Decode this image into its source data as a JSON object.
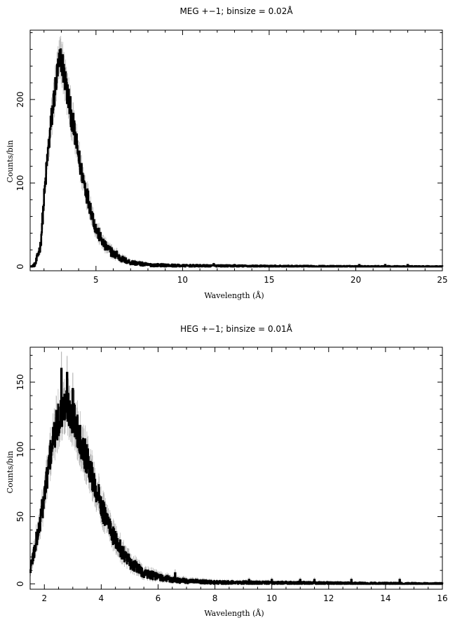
{
  "chart_data": [
    {
      "type": "line",
      "title": "MEG +−1; binsize = 0.02Å",
      "xlabel": "Wavelength (Å)",
      "ylabel": "Counts/bin",
      "xlim": [
        1.2,
        25
      ],
      "ylim": [
        -5,
        283
      ],
      "xticks": [
        5,
        10,
        15,
        20,
        25
      ],
      "xtick_labels": [
        "5",
        "10",
        "15",
        "20",
        "25"
      ],
      "yticks": [
        0,
        100,
        200
      ],
      "ytick_labels": [
        "0",
        "100",
        "200"
      ],
      "binsize": 0.02,
      "error_bars": true,
      "profile_points": [
        [
          1.3,
          0
        ],
        [
          1.5,
          3
        ],
        [
          1.8,
          25
        ],
        [
          2.0,
          80
        ],
        [
          2.2,
          130
        ],
        [
          2.4,
          170
        ],
        [
          2.6,
          205
        ],
        [
          2.8,
          235
        ],
        [
          3.0,
          250
        ],
        [
          3.2,
          225
        ],
        [
          3.5,
          190
        ],
        [
          3.8,
          155
        ],
        [
          4.1,
          120
        ],
        [
          4.5,
          85
        ],
        [
          5.0,
          45
        ],
        [
          5.5,
          25
        ],
        [
          6.0,
          15
        ],
        [
          6.5,
          9
        ],
        [
          7.0,
          5
        ],
        [
          8.0,
          2
        ],
        [
          10.0,
          1
        ],
        [
          15.0,
          0.5
        ],
        [
          25.0,
          0
        ]
      ],
      "spikes": [
        [
          5.9,
          22
        ],
        [
          6.2,
          18
        ],
        [
          11.8,
          3
        ],
        [
          13.0,
          2
        ],
        [
          20.2,
          2
        ],
        [
          21.7,
          2
        ],
        [
          23.0,
          2
        ]
      ]
    },
    {
      "type": "line",
      "title": "HEG +−1; binsize = 0.01Å",
      "xlabel": "Wavelength (Å)",
      "ylabel": "Counts/bin",
      "xlim": [
        1.5,
        16
      ],
      "ylim": [
        -4,
        176
      ],
      "xticks": [
        2,
        4,
        6,
        8,
        10,
        12,
        14,
        16
      ],
      "xtick_labels": [
        "2",
        "4",
        "6",
        "8",
        "10",
        "12",
        "14",
        "16"
      ],
      "yticks": [
        0,
        50,
        100,
        150
      ],
      "ytick_labels": [
        "0",
        "50",
        "100",
        "150"
      ],
      "binsize": 0.01,
      "error_bars": true,
      "profile_points": [
        [
          1.5,
          10
        ],
        [
          1.8,
          40
        ],
        [
          2.0,
          65
        ],
        [
          2.2,
          95
        ],
        [
          2.4,
          115
        ],
        [
          2.6,
          128
        ],
        [
          2.8,
          132
        ],
        [
          3.0,
          125
        ],
        [
          3.2,
          112
        ],
        [
          3.5,
          92
        ],
        [
          3.8,
          72
        ],
        [
          4.1,
          52
        ],
        [
          4.5,
          32
        ],
        [
          5.0,
          16
        ],
        [
          5.5,
          8
        ],
        [
          6.0,
          5
        ],
        [
          6.5,
          3
        ],
        [
          7.0,
          2
        ],
        [
          8.0,
          1
        ],
        [
          16.0,
          0
        ]
      ],
      "spikes": [
        [
          2.6,
          160
        ],
        [
          2.8,
          157
        ],
        [
          3.0,
          145
        ],
        [
          6.6,
          8
        ],
        [
          9.2,
          3
        ],
        [
          10.0,
          3
        ],
        [
          11.0,
          3
        ],
        [
          11.5,
          3
        ],
        [
          12.8,
          3
        ],
        [
          14.5,
          3
        ]
      ]
    }
  ]
}
